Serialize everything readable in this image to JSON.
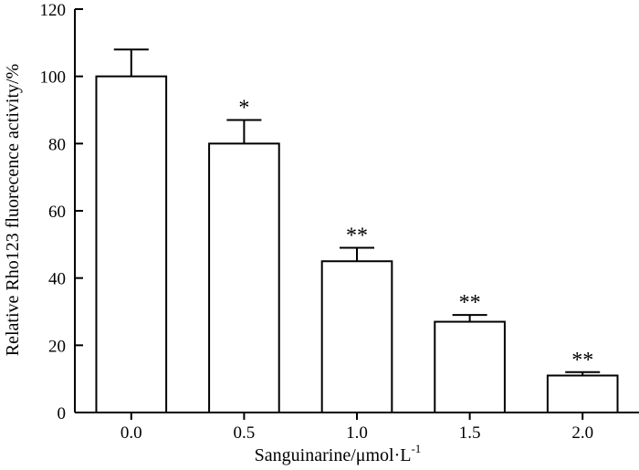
{
  "chart_data": {
    "type": "bar",
    "categories": [
      "0.0",
      "0.5",
      "1.0",
      "1.5",
      "2.0"
    ],
    "values": [
      100,
      80,
      45,
      27,
      11
    ],
    "errors": [
      8,
      7,
      4,
      2,
      1
    ],
    "significance": [
      "",
      "*",
      "**",
      "**",
      "**"
    ],
    "xlabel": "Sanguinarine/μmol·L",
    "xlabel_superscript": "-1",
    "ylabel": "Relative Rho123 fluorecence activity/%",
    "ylim": [
      0,
      120
    ],
    "yticks": [
      "0",
      "20",
      "40",
      "60",
      "80",
      "100",
      "120"
    ],
    "grid": false,
    "bar_fill": "#ffffff",
    "bar_stroke": "#000000"
  }
}
